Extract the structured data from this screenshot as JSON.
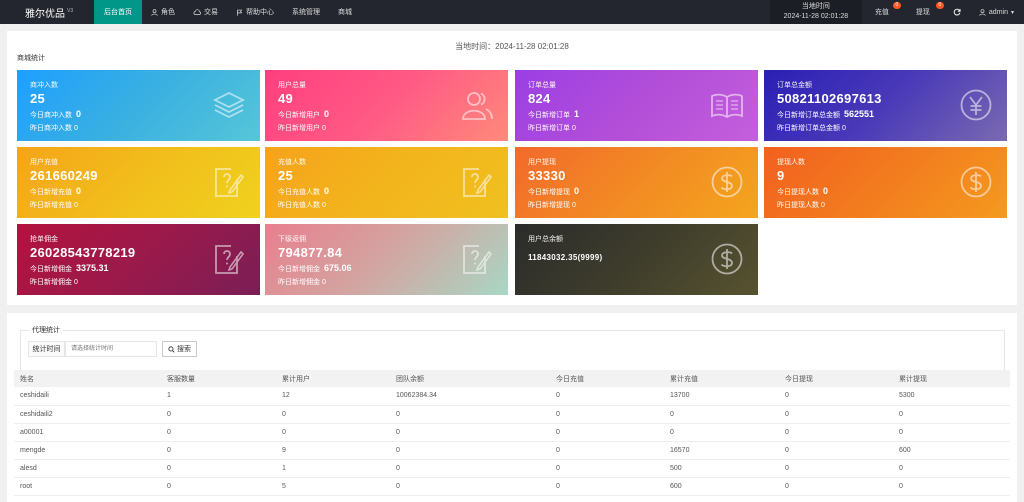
{
  "topbar": {
    "brand": "雅尔优品",
    "version": "V3",
    "nav": [
      {
        "label": "后台首页",
        "icon": "",
        "active": true
      },
      {
        "label": "角色",
        "icon": "user-icon"
      },
      {
        "label": "交易",
        "icon": "cloud-icon"
      },
      {
        "label": "帮助中心",
        "icon": "flag-icon"
      },
      {
        "label": "系统管理",
        "icon": ""
      },
      {
        "label": "商城",
        "icon": ""
      }
    ],
    "time_label": "当地时间",
    "time_value": "2024-11-28 02:01:28",
    "recharge": {
      "label": "充值",
      "badge": "0"
    },
    "withdraw": {
      "label": "提现",
      "badge": "0"
    },
    "refresh_icon": "refresh-icon",
    "user": "admin"
  },
  "main": {
    "current_time": "当地时间：2024-11-28 02:01:28",
    "section_label": "商城统计",
    "cards": [
      {
        "title": "商冲入数",
        "value": "25",
        "line1_label": "今日商冲入数",
        "line1_value": "0",
        "line2": "昨日商冲入数 0",
        "icon": "layers-icon",
        "color": "#1e9fff"
      },
      {
        "title": "用户总量",
        "value": "49",
        "line1_label": "今日新增用户",
        "line1_value": "0",
        "line2": "昨日新增用户 0",
        "icon": "users-icon",
        "color": "#ff4f7b"
      },
      {
        "title": "订单总量",
        "value": "824",
        "line1_label": "今日新增订单",
        "line1_value": "1",
        "line2": "昨日新增订单 0",
        "icon": "book-icon",
        "color": "#a53fe0"
      },
      {
        "title": "订单总金额",
        "value": "50821102697613",
        "line1_label": "今日新增订单总金额",
        "line1_value": "562551",
        "line2": "昨日新增订单总金额 0",
        "icon": "yen-icon",
        "color": "#3a35c2"
      },
      {
        "title": "用户充值",
        "value": "261660249",
        "line1_label": "今日新增充值",
        "line1_value": "0",
        "line2": "昨日新增充值 0",
        "icon": "edit-icon",
        "color": "#f0b41a"
      },
      {
        "title": "充值人数",
        "value": "25",
        "line1_label": "今日充值人数",
        "line1_value": "0",
        "line2": "昨日充值人数 0",
        "icon": "edit-icon",
        "color": "#f0b41a"
      },
      {
        "title": "用户提现",
        "value": "33330",
        "line1_label": "今日新增提现",
        "line1_value": "0",
        "line2": "昨日新增提现 0",
        "icon": "dollar-icon",
        "color": "#f08225"
      },
      {
        "title": "提现人数",
        "value": "9",
        "line1_label": "今日提现人数",
        "line1_value": "0",
        "line2": "昨日提现人数 0",
        "icon": "dollar-icon",
        "color": "#f07a20"
      },
      {
        "title": "抢单佣金",
        "value": "26028543778219",
        "line1_label": "今日新增佣金",
        "line1_value": "3375.31",
        "line2": "昨日新增佣金 0",
        "icon": "edit-icon",
        "color": "#a1164d"
      },
      {
        "title": "下级返佣",
        "value": "794877.84",
        "line1_label": "今日新增佣金",
        "line1_value": "675.06",
        "line2": "昨日新增佣金 0",
        "icon": "edit-icon",
        "color": "#d3a2a0"
      },
      {
        "title": "用户总余额",
        "value": "11843032.35(9999)",
        "line1_label": "",
        "line1_value": "",
        "line2": "",
        "icon": "dollar-icon",
        "color": "#3b3a30"
      }
    ]
  },
  "agents": {
    "legend": "代理统计",
    "filter_label": "统计时间",
    "filter_placeholder": "请选择统计时间",
    "search_label": "搜索",
    "columns": [
      "姓名",
      "客服数量",
      "累计用户",
      "团队余额",
      "今日充值",
      "累计充值",
      "今日提现",
      "累计提现"
    ],
    "rows": [
      [
        "ceshidaili",
        "1",
        "12",
        "10062384.34",
        "0",
        "13700",
        "0",
        "5300"
      ],
      [
        "ceshidaili2",
        "0",
        "0",
        "0",
        "0",
        "0",
        "0",
        "0"
      ],
      [
        "a00001",
        "0",
        "0",
        "0",
        "0",
        "0",
        "0",
        "0"
      ],
      [
        "mengde",
        "0",
        "9",
        "0",
        "0",
        "16570",
        "0",
        "600"
      ],
      [
        "alesd",
        "0",
        "1",
        "0",
        "0",
        "500",
        "0",
        "0"
      ],
      [
        "root",
        "0",
        "5",
        "0",
        "0",
        "600",
        "0",
        "0"
      ]
    ]
  }
}
